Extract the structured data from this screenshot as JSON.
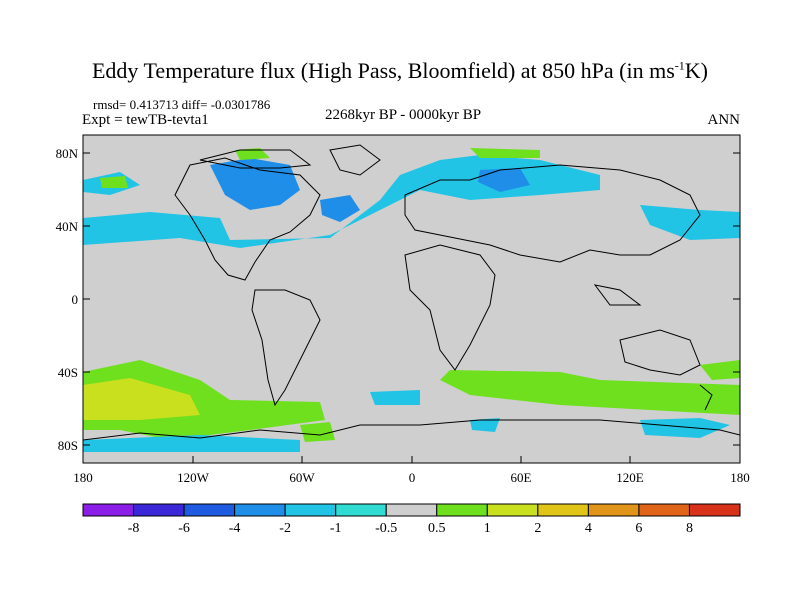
{
  "title": {
    "main": "Eddy Temperature flux (High Pass, Bloomfield) at 850 hPa (in ms",
    "sup": "-1",
    "end": "K)"
  },
  "stats": "rmsd= 0.413713 diff= -0.0301786",
  "expt": "Expt = tewTB-tevta1",
  "period": "2268kyr BP - 0000kyr BP",
  "season": "ANN",
  "map": {
    "lat_ticks": [
      "80N",
      "40N",
      "0",
      "40S",
      "80S"
    ],
    "lon_ticks": [
      "180",
      "120W",
      "60W",
      "0",
      "60E",
      "120E",
      "180"
    ]
  },
  "colorbar": {
    "labels": [
      "-8",
      "-6",
      "-4",
      "-2",
      "-1",
      "-0.5",
      "0.5",
      "1",
      "2",
      "4",
      "6",
      "8"
    ],
    "colors": [
      "#8a1ee6",
      "#3a28d8",
      "#1e5be0",
      "#1e8ee8",
      "#22c4e6",
      "#30dcd2",
      "#cfcfcf",
      "#6ee01e",
      "#c8e01e",
      "#e0c418",
      "#e0941a",
      "#e0641a",
      "#d8321a"
    ]
  }
}
